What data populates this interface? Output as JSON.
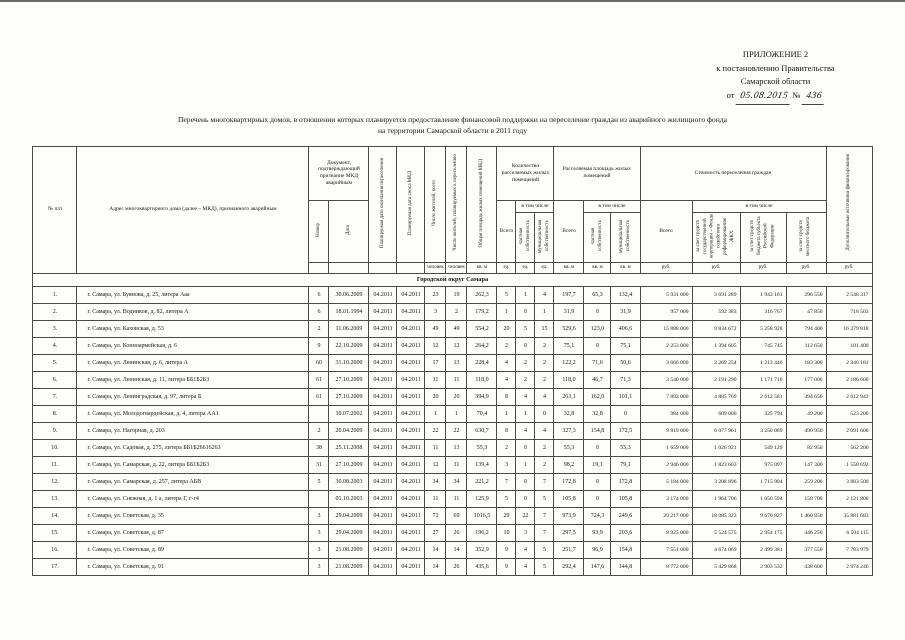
{
  "appendix": {
    "line1": "ПРИЛОЖЕНИЕ 2",
    "line2": "к постановлению Правительства",
    "line3": "Самарской области",
    "from_label": "от",
    "date_value": "05.08.2015",
    "num_label": "№",
    "num_value": "436"
  },
  "title": {
    "line1": "Перечень многоквартирных домов, в отношении которых планируется предоставление финансовой поддержки на переселение граждан из аварийного жилищного фонда",
    "line2": "на территории Самарской области в 2011 году"
  },
  "table": {
    "headers": {
      "num": "№ п/п",
      "address": "Адрес многоквартирного дома (далее – МКД), признанного аварийным",
      "doc_group": "Документ, подтверждающий признание МКД аварийным",
      "doc_number": "Номер",
      "doc_date": "Дата",
      "resettle_date": "Планируемая дата окончания переселения",
      "demolish_date": "Планируемая дата сноса МКД",
      "residents_total": "Число жителей, всего",
      "residents_planned": "Число жителей, планируемых к переселению",
      "area_mkd": "Общая площадь жилых помещений МКД",
      "units_group": "Количество расселяемых жилых помещений",
      "area_group": "Расселяемая площадь жилых помещений",
      "cost_group": "Стоимость переселения граждан",
      "total": "Всего",
      "including": "в том числе",
      "private": "частная собственность",
      "municipal": "муниципальная собственность",
      "cost_fund": "за счет средств государственной корпорации – Фонда содействия реформированию ЖКХ",
      "cost_region": "за счет средств бюджета субъекта Российской Федерации",
      "cost_local": "за счет средств местного бюджета",
      "extra": "Дополнительные источники финансирования",
      "unit_people": "человек",
      "unit_sqm": "кв. м",
      "unit_ed": "ед.",
      "unit_rub": "руб."
    },
    "section": "Городской округ Самара",
    "rows": [
      {
        "idx": "1.",
        "address": "г. Самара, ул. Буянова, д. 25, литера Ааа",
        "doc_num": "6",
        "doc_date": "30.06.2009",
        "date_resettle": "04.2011",
        "date_demolish": "04.2011",
        "residents": "23",
        "residents_plan": "19",
        "area_mkd": "262,3",
        "units_total": "5",
        "units_priv": "1",
        "units_mun": "4",
        "rarea_total": "197,7",
        "rarea_priv": "65,3",
        "rarea_mun": "132,4",
        "cost_total": "5 931 000",
        "cost_fund": "3 691 289",
        "cost_region": "1 943 161",
        "cost_local": "296 550",
        "extra": "2 548 317"
      },
      {
        "idx": "2.",
        "address": "г. Самара, ул. Водников, д. 82, литера А",
        "doc_num": "6",
        "doc_date": "18.01.1994",
        "date_resettle": "04.2011",
        "date_demolish": "04.2011",
        "residents": "3",
        "residents_plan": "2",
        "area_mkd": "179,2",
        "units_total": "1",
        "units_priv": "0",
        "units_mun": "1",
        "rarea_total": "31,9",
        "rarea_priv": "0",
        "rarea_mun": "31,9",
        "cost_total": "957 000",
        "cost_fund": "592 383",
        "cost_region": "316 767",
        "cost_local": "47 850",
        "extra": "718 503"
      },
      {
        "idx": "3.",
        "address": "г. Самара, ул. Каховская, д. 53",
        "doc_num": "2",
        "doc_date": "11.06.2009",
        "date_resettle": "04.2011",
        "date_demolish": "04.2011",
        "residents": "49",
        "residents_plan": "49",
        "area_mkd": "554,2",
        "units_total": "20",
        "units_priv": "5",
        "units_mun": "15",
        "rarea_total": "529,6",
        "rarea_priv": "123,0",
        "rarea_mun": "406,6",
        "cost_total": "15 888 000",
        "cost_fund": "9 834 672",
        "cost_region": "5 258 928",
        "cost_local": "794 400",
        "extra": "16 279 818"
      },
      {
        "idx": "4.",
        "address": "г. Самара, ул. Конноармейская, д. 6",
        "doc_num": "9",
        "doc_date": "22.10.2009",
        "date_resettle": "04.2011",
        "date_demolish": "04.2011",
        "residents": "12",
        "residents_plan": "12",
        "area_mkd": "264,2",
        "units_total": "2",
        "units_priv": "0",
        "units_mun": "2",
        "rarea_total": "75,1",
        "rarea_priv": "0",
        "rarea_mun": "75,1",
        "cost_total": "2 253 000",
        "cost_fund": "1 394 605",
        "cost_region": "745 745",
        "cost_local": "112 650",
        "extra": "101 400"
      },
      {
        "idx": "5.",
        "address": "г. Самара, ул. Ленинская, д. 6, литера А",
        "doc_num": "60",
        "doc_date": "31.10.2000",
        "date_resettle": "04.2011",
        "date_demolish": "04.2011",
        "residents": "17",
        "residents_plan": "13",
        "area_mkd": "228,4",
        "units_total": "4",
        "units_priv": "2",
        "units_mun": "2",
        "rarea_total": "122,2",
        "rarea_priv": "71,6",
        "rarea_mun": "50,6",
        "cost_total": "3 666 000",
        "cost_fund": "2 269 254",
        "cost_region": "1 213 446",
        "cost_local": "183 300",
        "extra": "2 340 181"
      },
      {
        "idx": "6.",
        "address": "г. Самара, ул. Ленинская, д. 11, литера ББ1Б2Б3",
        "doc_num": "61",
        "doc_date": "27.10.2009",
        "date_resettle": "04.2011",
        "date_demolish": "04.2011",
        "residents": "11",
        "residents_plan": "11",
        "area_mkd": "118,0",
        "units_total": "4",
        "units_priv": "2",
        "units_mun": "2",
        "rarea_total": "118,0",
        "rarea_priv": "46,7",
        "rarea_mun": "71,3",
        "cost_total": "3 540 000",
        "cost_fund": "2 191 290",
        "cost_region": "1 171 710",
        "cost_local": "177 000",
        "extra": "2 186 600"
      },
      {
        "idx": "7.",
        "address": "г. Самара, ул. Ленинградская, д. 97, литера Б",
        "doc_num": "61",
        "doc_date": "27.10.2009",
        "date_resettle": "04.2011",
        "date_demolish": "04.2011",
        "residents": "20",
        "residents_plan": "20",
        "area_mkd": "394,9",
        "units_total": "8",
        "units_priv": "4",
        "units_mun": "4",
        "rarea_total": "263,1",
        "rarea_priv": "162,0",
        "rarea_mun": "101,1",
        "cost_total": "7 893 000",
        "cost_fund": "4 885 769",
        "cost_region": "2 612 581",
        "cost_local": "394 650",
        "extra": "2 612 943"
      },
      {
        "idx": "8.",
        "address": "г. Самара, ул. Молодогвардейская, д. 4, литера АА1",
        "doc_num": "",
        "doc_date": "10.07.2002",
        "date_resettle": "04.2011",
        "date_demolish": "04.2011",
        "residents": "1",
        "residents_plan": "1",
        "area_mkd": "70,4",
        "units_total": "1",
        "units_priv": "1",
        "units_mun": "0",
        "rarea_total": "32,8",
        "rarea_priv": "32,8",
        "rarea_mun": "0",
        "cost_total": "984 000",
        "cost_fund": "609 006",
        "cost_region": "325 794",
        "cost_local": "49 200",
        "extra": "523 200"
      },
      {
        "idx": "9.",
        "address": "г. Самара, ул. Нагорная, д. 203",
        "doc_num": "2",
        "doc_date": "20.04.2009",
        "date_resettle": "04.2011",
        "date_demolish": "04.2011",
        "residents": "22",
        "residents_plan": "22",
        "area_mkd": "630,7",
        "units_total": "8",
        "units_priv": "4",
        "units_mun": "4",
        "rarea_total": "327,3",
        "rarea_priv": "154,8",
        "rarea_mun": "172,5",
        "cost_total": "9 819 000",
        "cost_fund": "6 077 961",
        "cost_region": "3 250 089",
        "cost_local": "490 950",
        "extra": "2 091 600"
      },
      {
        "idx": "10.",
        "address": "г. Самара, ул. Садовая, д. 275, литера ББ1Б26616263",
        "doc_num": "38",
        "doc_date": "25.11.2008",
        "date_resettle": "04.2011",
        "date_demolish": "04.2011",
        "residents": "11",
        "residents_plan": "13",
        "area_mkd": "55,3",
        "units_total": "2",
        "units_priv": "0",
        "units_mun": "2",
        "rarea_total": "55,3",
        "rarea_priv": "0",
        "rarea_mun": "55,3",
        "cost_total": "1 659 000",
        "cost_fund": "1 026 921",
        "cost_region": "549 129",
        "cost_local": "82 950",
        "extra": "562 200"
      },
      {
        "idx": "11.",
        "address": "г. Самара, ул. Самарская, д. 22, литера ББ1Б2Б3",
        "doc_num": "31",
        "doc_date": "27.10.2009",
        "date_resettle": "04.2011",
        "date_demolish": "04.2011",
        "residents": "12",
        "residents_plan": "11",
        "area_mkd": "139,4",
        "units_total": "3",
        "units_priv": "1",
        "units_mun": "2",
        "rarea_total": "98,2",
        "rarea_priv": "19,1",
        "rarea_mun": "79,1",
        "cost_total": "2 946 000",
        "cost_fund": "1 823 603",
        "cost_region": "975 097",
        "cost_local": "147 300",
        "extra": "1 550 692"
      },
      {
        "idx": "12.",
        "address": "г. Самара, ул. Самарская, д. 257, литера АБВ",
        "doc_num": "5",
        "doc_date": "30.08.2003",
        "date_resettle": "04.2011",
        "date_demolish": "04.2011",
        "residents": "34",
        "residents_plan": "34",
        "area_mkd": "221,2",
        "units_total": "7",
        "units_priv": "0",
        "units_mun": "7",
        "rarea_total": "172,8",
        "rarea_priv": "0",
        "rarea_mun": "172,8",
        "cost_total": "5 184 000",
        "cost_fund": "3 208 896",
        "cost_region": "1 715 904",
        "cost_local": "259 200",
        "extra": "3 883 500"
      },
      {
        "idx": "13.",
        "address": "г. Самара, ул. Снежная, д. 1 а, литера Г, г-г4",
        "doc_num": "",
        "doc_date": "01.10.2003",
        "date_resettle": "04.2011",
        "date_demolish": "04.2011",
        "residents": "11",
        "residents_plan": "11",
        "area_mkd": "125,9",
        "units_total": "5",
        "units_priv": "0",
        "units_mun": "5",
        "rarea_total": "105,8",
        "rarea_priv": "0",
        "rarea_mun": "105,8",
        "cost_total": "3 174 000",
        "cost_fund": "1 964 706",
        "cost_region": "1 050 594",
        "cost_local": "158 700",
        "extra": "2 121 800"
      },
      {
        "idx": "14.",
        "address": "г. Самара, ул. Советская, д. 35",
        "doc_num": "3",
        "doc_date": "29.04.2009",
        "date_resettle": "04.2011",
        "date_demolish": "04.2011",
        "residents": "71",
        "residents_plan": "69",
        "area_mkd": "1016,5",
        "units_total": "29",
        "units_priv": "22",
        "units_mun": "7",
        "rarea_total": "973,9",
        "rarea_priv": "724,3",
        "rarea_mun": "249,6",
        "cost_total": "29 217 000",
        "cost_fund": "18 085 323",
        "cost_region": "9 670 827",
        "cost_local": "1 460 850",
        "extra": "35 881 683"
      },
      {
        "idx": "15.",
        "address": "г. Самара, ул. Советская, д. 87",
        "doc_num": "3",
        "doc_date": "29.04.2009",
        "date_resettle": "04.2011",
        "date_demolish": "04.2011",
        "residents": "27",
        "residents_plan": "26",
        "area_mkd": "196,2",
        "units_total": "10",
        "units_priv": "3",
        "units_mun": "7",
        "rarea_total": "297,5",
        "rarea_priv": "93,9",
        "rarea_mun": "203,6",
        "cost_total": "8 925 000",
        "cost_fund": "5 524 575",
        "cost_region": "2 954 175",
        "cost_local": "446 250",
        "extra": "6 504 115"
      },
      {
        "idx": "16.",
        "address": "г. Самара, ул. Советская, д. 89",
        "doc_num": "3",
        "doc_date": "21.08.2009",
        "date_resettle": "04.2011",
        "date_demolish": "04.2011",
        "residents": "14",
        "residents_plan": "14",
        "area_mkd": "352,9",
        "units_total": "9",
        "units_priv": "4",
        "units_mun": "5",
        "rarea_total": "251,7",
        "rarea_priv": "96,9",
        "rarea_mun": "154,8",
        "cost_total": "7 551 000",
        "cost_fund": "4 674 069",
        "cost_region": "2 499 381",
        "cost_local": "377 550",
        "extra": "7 783 979"
      },
      {
        "idx": "17.",
        "address": "г. Самара, ул. Советская, д. 91",
        "doc_num": "3",
        "doc_date": "21.08.2009",
        "date_resettle": "04.2011",
        "date_demolish": "04.2011",
        "residents": "14",
        "residents_plan": "26",
        "area_mkd": "435,6",
        "units_total": "9",
        "units_priv": "4",
        "units_mun": "5",
        "rarea_total": "292,4",
        "rarea_priv": "147,6",
        "rarea_mun": "144,8",
        "cost_total": "8 772 000",
        "cost_fund": "5 429 868",
        "cost_region": "2 903 532",
        "cost_local": "438 600",
        "extra": "2 974 246"
      }
    ]
  }
}
